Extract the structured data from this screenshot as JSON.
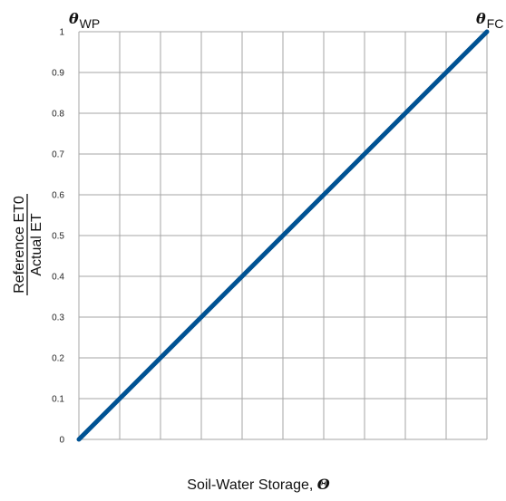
{
  "chart_data": {
    "type": "line",
    "title": "",
    "x": [
      0,
      1
    ],
    "series": [
      {
        "values": [
          0,
          1
        ],
        "color": "#005293"
      }
    ],
    "xlim": [
      0,
      1
    ],
    "ylim": [
      0,
      1
    ],
    "y_ticks": [
      "0",
      "0.1",
      "0.2",
      "0.3",
      "0.4",
      "0.5",
      "0.6",
      "0.7",
      "0.8",
      "0.9",
      "1"
    ],
    "x_gridlines": 10,
    "grid": true,
    "xlabel": {
      "text": "Soil-Water Storage, ",
      "symbol": "Θ"
    },
    "ylabel": {
      "numerator": "Reference ET0",
      "denominator": "Actual ET"
    },
    "annotations": [
      {
        "symbol": "θ",
        "subscript": "WP",
        "position": "top-left"
      },
      {
        "symbol": "θ",
        "subscript": "FC",
        "position": "top-right"
      }
    ],
    "colors": {
      "line": "#005293",
      "grid": "#a6a6a6"
    }
  }
}
